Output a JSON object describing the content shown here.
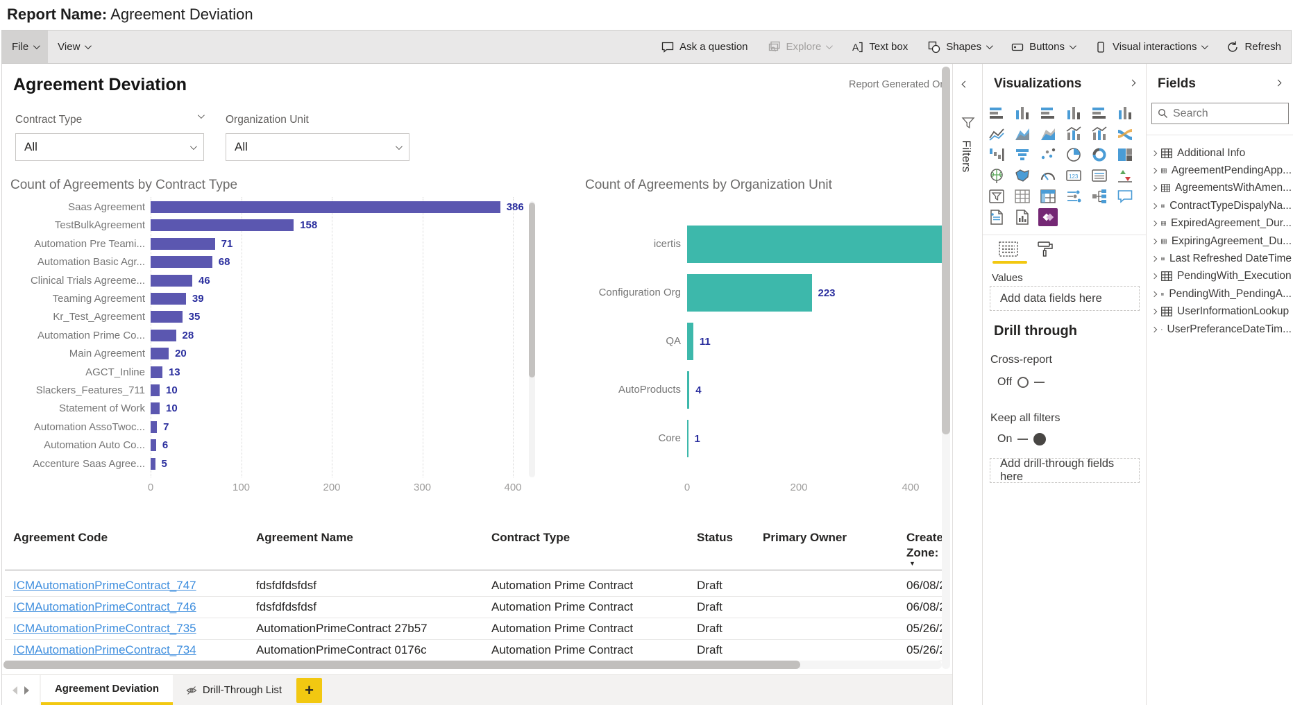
{
  "page": {
    "report_name_label": "Report Name:",
    "report_name": "Agreement Deviation"
  },
  "toolbar": {
    "file": "File",
    "view": "View",
    "ask_a_question": "Ask a question",
    "explore": "Explore",
    "text_box": "Text box",
    "shapes": "Shapes",
    "buttons": "Buttons",
    "visual_interactions": "Visual interactions",
    "refresh": "Refresh"
  },
  "canvas": {
    "title": "Agreement Deviation",
    "generated_on": "Report Generated On",
    "slicers": [
      {
        "label": "Contract Type",
        "value": "All"
      },
      {
        "label": "Organization Unit",
        "value": "All"
      }
    ]
  },
  "chart_data": [
    {
      "type": "bar",
      "orientation": "horizontal",
      "title": "Count of Agreements by Contract Type",
      "categories": [
        "Saas Agreement",
        "TestBulkAgreement",
        "Automation Pre Teami...",
        "Automation Basic Agr...",
        "Clinical Trials Agreeme...",
        "Teaming Agreement",
        "Kr_Test_Agreement",
        "Automation Prime Co...",
        "Main Agreement",
        "AGCT_Inline",
        "Slackers_Features_711",
        "Statement of Work",
        "Automation AssoTwoc...",
        "Automation Auto Co...",
        "Accenture Saas Agree..."
      ],
      "values": [
        386,
        158,
        71,
        68,
        46,
        39,
        35,
        28,
        20,
        13,
        10,
        10,
        7,
        6,
        5
      ],
      "x_ticks": [
        0,
        100,
        200,
        300,
        400
      ],
      "xlim": [
        0,
        400
      ],
      "grid": true,
      "has_scrollbar": true,
      "bar_color": "#5b57b0",
      "value_label_color": "#2b2f9e"
    },
    {
      "type": "bar",
      "orientation": "horizontal",
      "title": "Count of Agreements by Organization Unit",
      "categories": [
        "icertis",
        "Configuration Org",
        "QA",
        "AutoProducts",
        "Core"
      ],
      "values": [
        null,
        223,
        11,
        4,
        1
      ],
      "clipped_categories": [
        "icertis"
      ],
      "x_ticks": [
        0,
        200,
        400
      ],
      "xlim": [
        0,
        400
      ],
      "grid": false,
      "has_scrollbar": false,
      "bar_color": "#3db8ab",
      "value_label_color": "#2b2f9e"
    }
  ],
  "table": {
    "headers": [
      "Agreement Code",
      "Agreement Name",
      "Contract Type",
      "Status",
      "Primary Owner"
    ],
    "created_header_line1": "Created",
    "created_header_line2": "Zone: U",
    "sort_indicator": "▼",
    "rows": [
      {
        "code": "ICMAutomationPrimeContract_747",
        "name": "fdsfdfdsfdsf",
        "contract_type": "Automation Prime Contract",
        "status": "Draft",
        "owner": "",
        "created": "06/08/2"
      },
      {
        "code": "ICMAutomationPrimeContract_746",
        "name": "fdsfdfdsfdsf",
        "contract_type": "Automation Prime Contract",
        "status": "Draft",
        "owner": "",
        "created": "06/08/2"
      },
      {
        "code": "ICMAutomationPrimeContract_735",
        "name": "AutomationPrimeContract 27b57",
        "contract_type": "Automation Prime Contract",
        "status": "Draft",
        "owner": "",
        "created": "05/26/2"
      },
      {
        "code": "ICMAutomationPrimeContract_734",
        "name": "AutomationPrimeContract 0176c",
        "contract_type": "Automation Prime Contract",
        "status": "Draft",
        "owner": "",
        "created": "05/26/2"
      }
    ]
  },
  "filters_pane": {
    "label": "Filters"
  },
  "viz_pane": {
    "title": "Visualizations",
    "values_label": "Values",
    "add_data_placeholder": "Add data fields here",
    "drill_heading": "Drill through",
    "cross_report_label": "Cross-report",
    "cross_report_state": "Off",
    "keep_filters_label": "Keep all filters",
    "keep_filters_state": "On",
    "add_drill_placeholder": "Add drill-through fields here",
    "selected_visual": "power-apps",
    "icons": [
      "stacked-bar-chart",
      "stacked-column-chart",
      "clustered-bar-chart",
      "clustered-column-chart",
      "100-stacked-bar-chart",
      "100-stacked-column-chart",
      "line-chart",
      "area-chart",
      "stacked-area-chart",
      "line-stacked-column-chart",
      "line-clustered-column-chart",
      "ribbon-chart",
      "waterfall-chart",
      "funnel-chart",
      "scatter-chart",
      "pie-chart",
      "donut-chart",
      "treemap",
      "map",
      "filled-map",
      "gauge",
      "card",
      "multi-row-card",
      "kpi",
      "slicer",
      "table",
      "matrix",
      "key-influencers",
      "decomposition-tree",
      "q-and-a",
      "paginated-report",
      "report-visual",
      "power-apps"
    ]
  },
  "fields_pane": {
    "title": "Fields",
    "search_placeholder": "Search",
    "tables": [
      "Additional Info",
      "AgreementPendingApp...",
      "AgreementsWithAmen...",
      "ContractTypeDispalyNa...",
      "ExpiredAgreement_Dur...",
      "ExpiringAgreement_Du...",
      "Last Refreshed DateTime",
      "PendingWith_Execution",
      "PendingWith_PendingA...",
      "UserInformationLookup",
      "UserPreferanceDateTim..."
    ]
  },
  "tabs": {
    "active": "Agreement Deviation",
    "hidden_page": "Drill-Through List",
    "add_label": "+"
  },
  "colors": {
    "accent_yellow": "#f2c811",
    "bar_purple": "#5b57b0",
    "bar_teal": "#3db8ab",
    "value_blue": "#2b2f9e",
    "link_blue": "#3e8ede",
    "powerapps_purple": "#742774"
  }
}
